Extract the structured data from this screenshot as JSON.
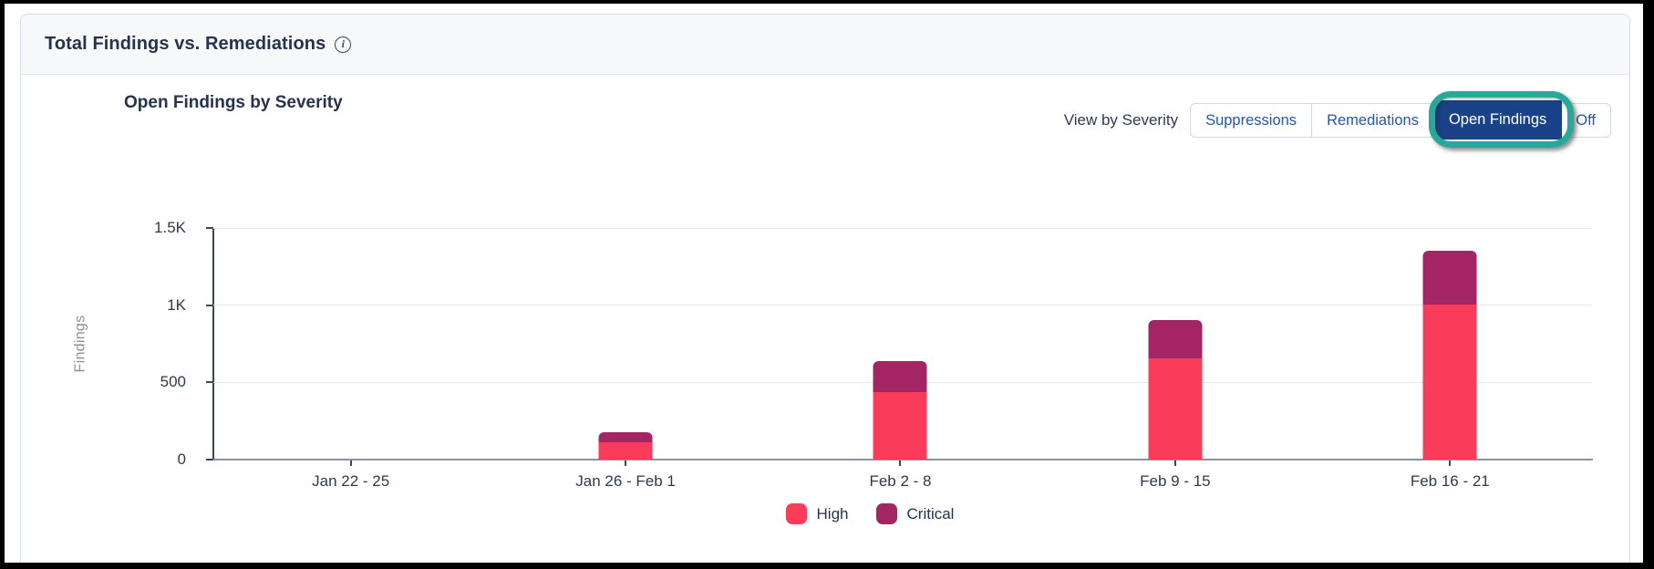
{
  "card": {
    "title": "Total Findings vs. Remediations",
    "info_icon_glyph": "i"
  },
  "panel": {
    "heading": "Open Findings by Severity",
    "view_by_label": "View by Severity",
    "toggle_buttons": [
      {
        "label": "Suppressions",
        "selected": false
      },
      {
        "label": "Remediations",
        "selected": false
      },
      {
        "label": "Open Findings",
        "selected": true,
        "annotated": true
      },
      {
        "label": "Off",
        "selected": false
      }
    ],
    "selected_button_bg": "#1A4289",
    "button_text_color": "#2257A7",
    "annotation_color": "#29A79B"
  },
  "chart_data": {
    "type": "bar",
    "stacked": true,
    "title": "Open Findings by Severity",
    "xlabel": "",
    "ylabel": "Findings",
    "categories": [
      "Jan 22 - 25",
      "Jan 26 - Feb 1",
      "Feb 2 - 8",
      "Feb 9 - 15",
      "Feb 16 - 21"
    ],
    "series": [
      {
        "name": "High",
        "color": "#F93C59",
        "values": [
          0,
          115,
          435,
          655,
          1005
        ]
      },
      {
        "name": "Critical",
        "color": "#A32564",
        "values": [
          0,
          65,
          200,
          250,
          345
        ]
      }
    ],
    "ylim": [
      0,
      1500
    ],
    "yticks": [
      {
        "label": "0",
        "value": 0
      },
      {
        "label": "500",
        "value": 500
      },
      {
        "label": "1K",
        "value": 1000
      },
      {
        "label": "1.5K",
        "value": 1500
      }
    ],
    "grid": true,
    "legend_position": "bottom"
  }
}
